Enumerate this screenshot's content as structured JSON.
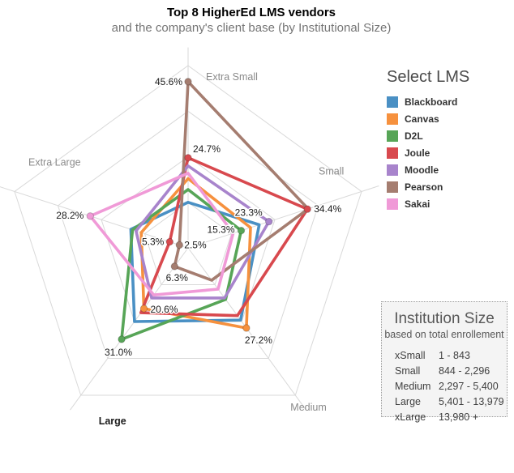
{
  "header": {
    "title": "Top 8 HigherEd LMS vendors",
    "subtitle": "and the company's client base (by Institutional Size)"
  },
  "legend": {
    "title": "Select LMS"
  },
  "institution_size": {
    "title": "Institution Size",
    "subtitle": "based on total enrollement",
    "rows": [
      {
        "label": "xSmall",
        "range": "1 - 843"
      },
      {
        "label": "Small",
        "range": "844 - 2,296"
      },
      {
        "label": "Medium",
        "range": "2,297 - 5,400"
      },
      {
        "label": "Large",
        "range": "5,401 - 13,979"
      },
      {
        "label": "xLarge",
        "range": "13,980 +"
      }
    ]
  },
  "chart_data": {
    "type": "radar",
    "title": "Top 8 HigherEd LMS vendors",
    "subtitle": "and the company's client base (by Institutional Size)",
    "axes": [
      "Extra Small",
      "Small",
      "Medium",
      "Large",
      "Extra Large"
    ],
    "emphasized_axis": "Large",
    "max_value": 50,
    "unit": "%",
    "grid_rings": [
      12.5,
      25,
      37.5,
      50
    ],
    "series": [
      {
        "name": "Blackboard",
        "color": "#4a90c4",
        "values": [
          12.5,
          20.5,
          24.5,
          25.0,
          16.5
        ]
      },
      {
        "name": "Canvas",
        "color": "#f6913e",
        "values": [
          19.0,
          18.0,
          27.2,
          20.6,
          13.5
        ]
      },
      {
        "name": "D2L",
        "color": "#57a557",
        "values": [
          16.0,
          15.3,
          17.5,
          31.0,
          16.0
        ]
      },
      {
        "name": "Joule",
        "color": "#d8494e",
        "values": [
          24.7,
          34.4,
          23.0,
          22.0,
          5.3
        ]
      },
      {
        "name": "Moodle",
        "color": "#a884cc",
        "values": [
          22.5,
          23.3,
          17.0,
          17.0,
          15.0
        ]
      },
      {
        "name": "Pearson",
        "color": "#a57d70",
        "values": [
          45.6,
          34.6,
          11.0,
          6.3,
          2.5
        ]
      },
      {
        "name": "Sakai",
        "color": "#f09ad7",
        "values": [
          20.5,
          13.0,
          14.0,
          16.0,
          28.2
        ]
      }
    ],
    "labeled_points": [
      {
        "series": "Pearson",
        "axis": "Extra Small",
        "value": 45.6,
        "label": "45.6%"
      },
      {
        "series": "Joule",
        "axis": "Extra Small",
        "value": 24.7,
        "label": "24.7%"
      },
      {
        "series": "Joule",
        "axis": "Small",
        "value": 34.4,
        "label": "34.4%"
      },
      {
        "series": "Moodle",
        "axis": "Small",
        "value": 23.3,
        "label": "23.3%"
      },
      {
        "series": "D2L",
        "axis": "Small",
        "value": 15.3,
        "label": "15.3%"
      },
      {
        "series": "Canvas",
        "axis": "Medium",
        "value": 27.2,
        "label": "27.2%"
      },
      {
        "series": "D2L",
        "axis": "Large",
        "value": 31.0,
        "label": "31.0%"
      },
      {
        "series": "Canvas",
        "axis": "Large",
        "value": 20.6,
        "label": "20.6%"
      },
      {
        "series": "Pearson",
        "axis": "Large",
        "value": 6.3,
        "label": "6.3%"
      },
      {
        "series": "Sakai",
        "axis": "Extra Large",
        "value": 28.2,
        "label": "28.2%"
      },
      {
        "series": "Joule",
        "axis": "Extra Large",
        "value": 5.3,
        "label": "5.3%"
      },
      {
        "series": "Pearson",
        "axis": "Extra Large",
        "value": 2.5,
        "label": "2.5%"
      }
    ]
  }
}
